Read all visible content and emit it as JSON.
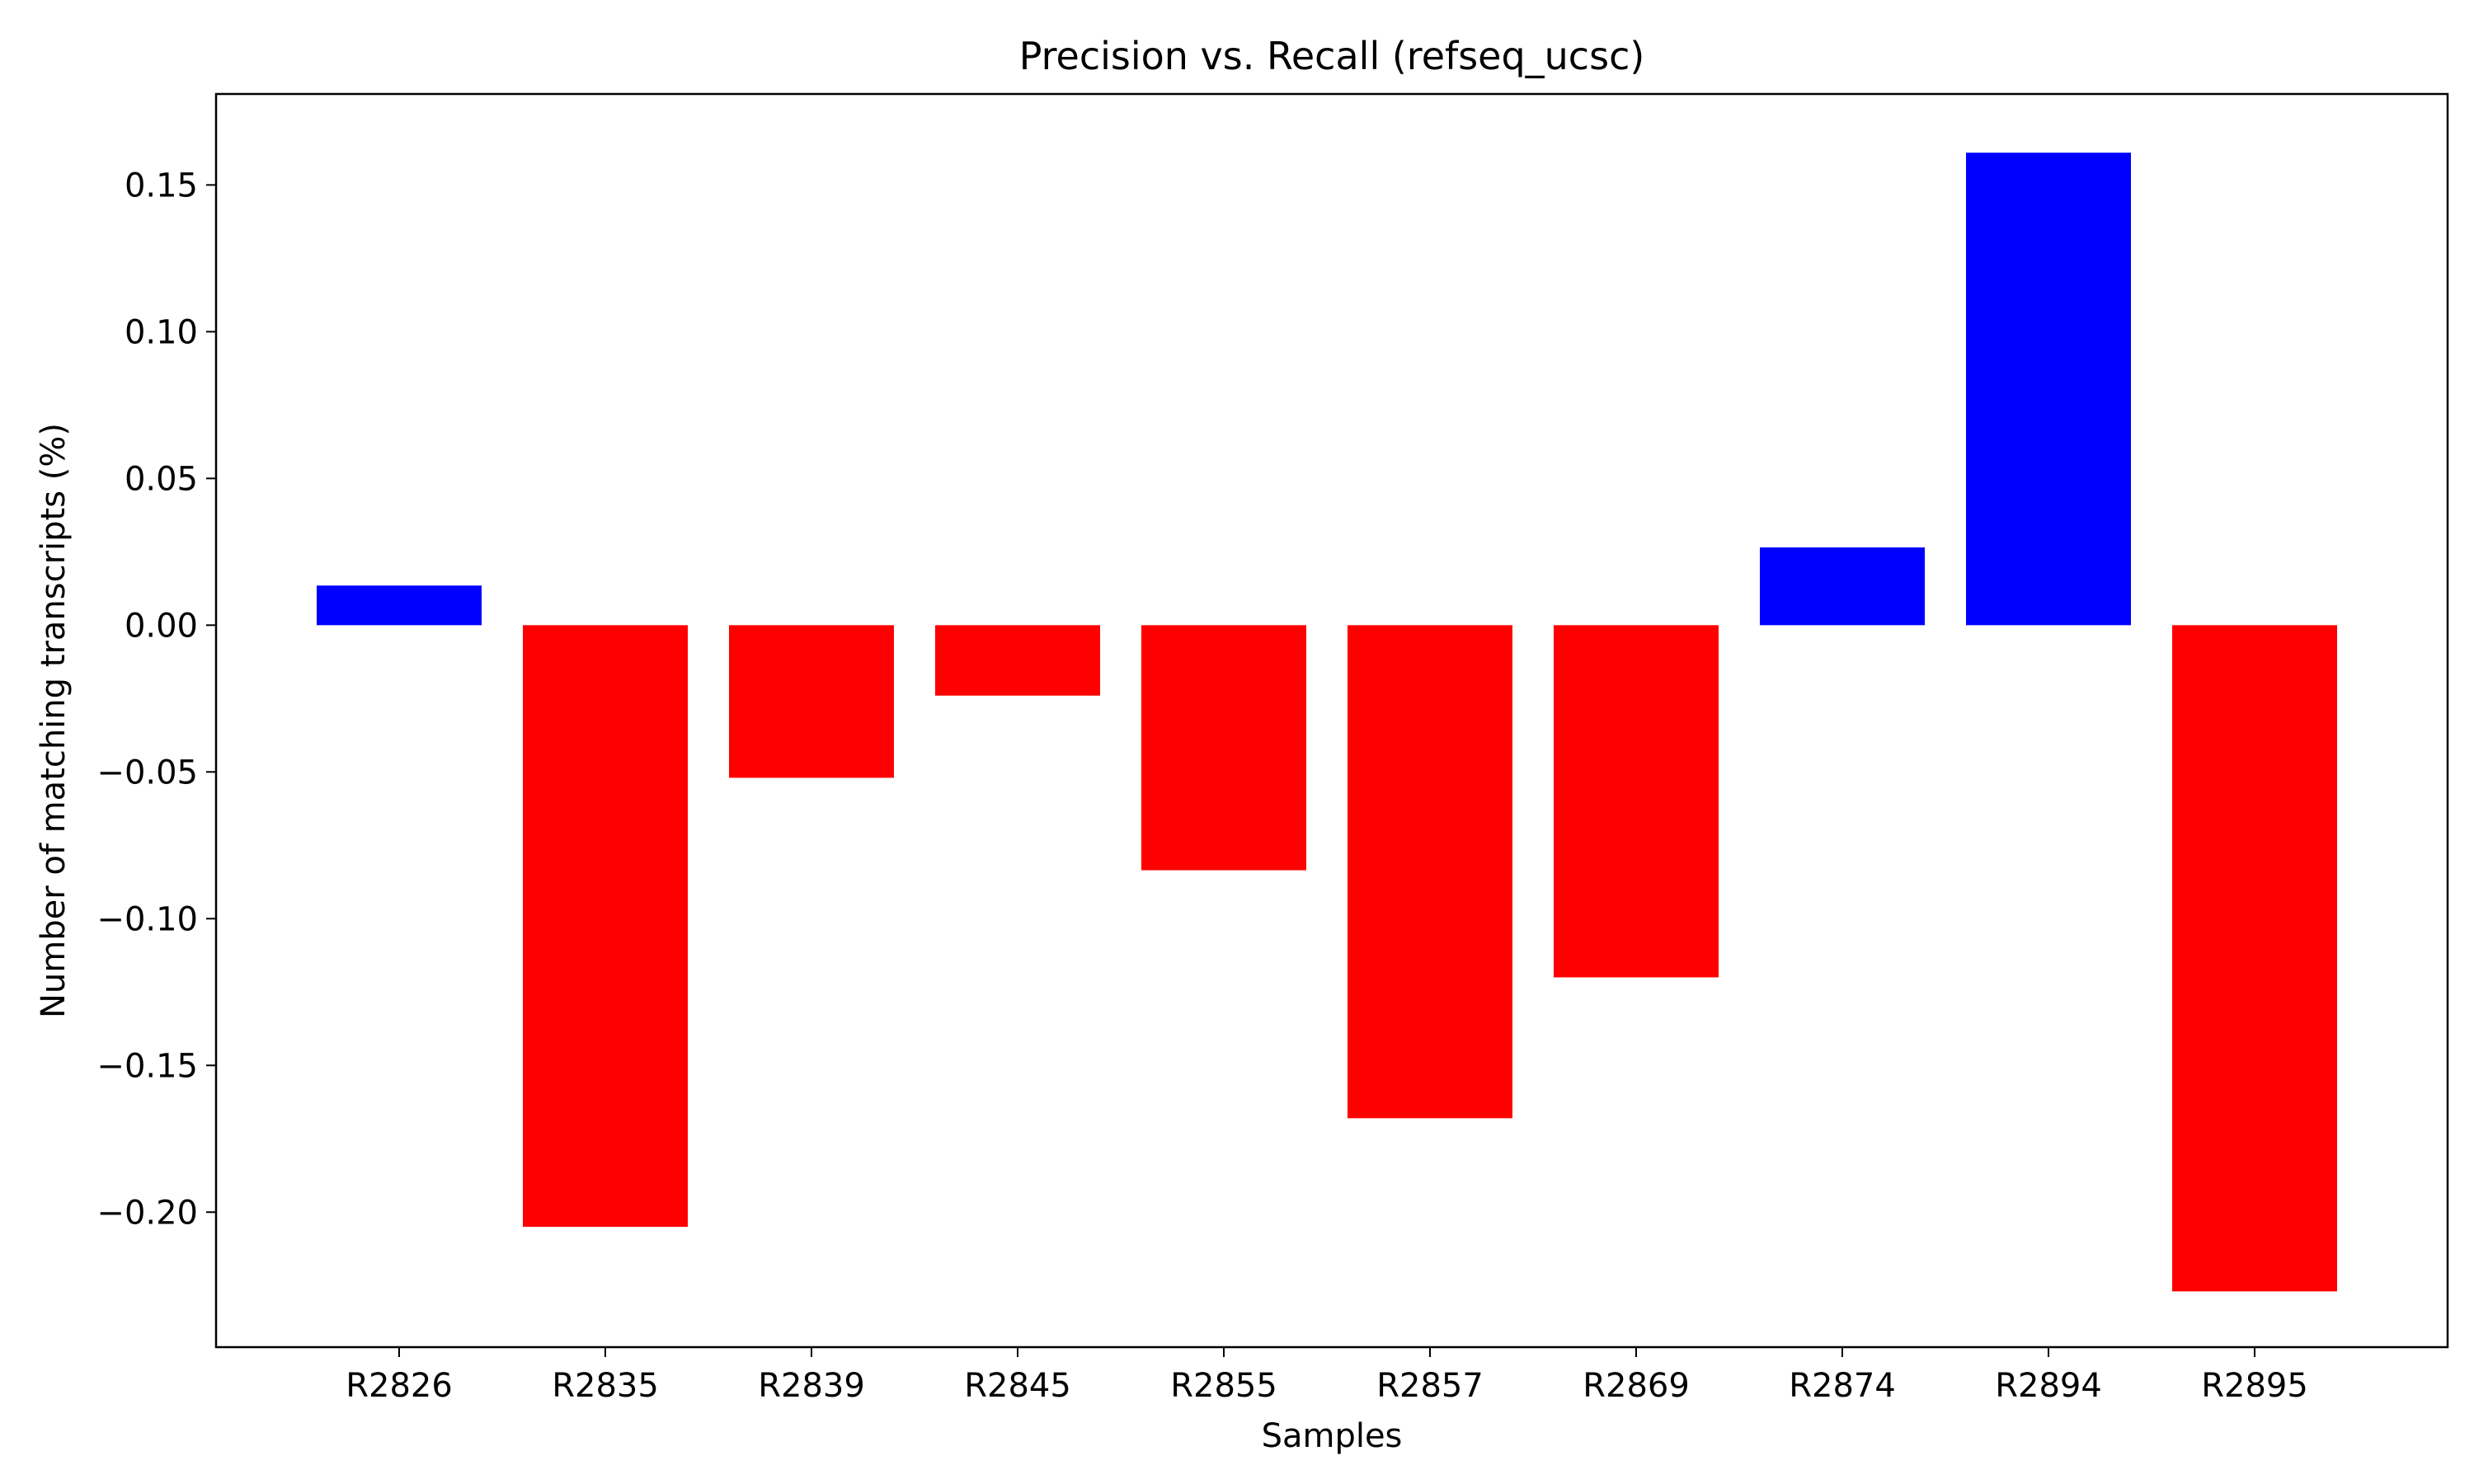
{
  "chart_data": {
    "type": "bar",
    "title": "Precision vs. Recall (refseq_ucsc)",
    "xlabel": "Samples",
    "ylabel": "Number of matching transcripts (%)",
    "categories": [
      "R2826",
      "R2835",
      "R2839",
      "R2845",
      "R2855",
      "R2857",
      "R2869",
      "R2874",
      "R2894",
      "R2895"
    ],
    "values": [
      0.0135,
      -0.205,
      -0.052,
      -0.024,
      -0.0835,
      -0.168,
      -0.12,
      0.0265,
      0.161,
      -0.227
    ],
    "ylim": [
      -0.246,
      0.181
    ],
    "yticks": [
      0.15,
      0.1,
      0.05,
      0.0,
      -0.05,
      -0.1,
      -0.15,
      -0.2
    ],
    "ytick_labels": [
      "0.15",
      "0.10",
      "0.05",
      "0.00",
      "−0.05",
      "−0.10",
      "−0.15",
      "−0.20"
    ],
    "colors": {
      "positive": "#0000ff",
      "negative": "#ff0000"
    },
    "grid": false,
    "legend": "none"
  }
}
